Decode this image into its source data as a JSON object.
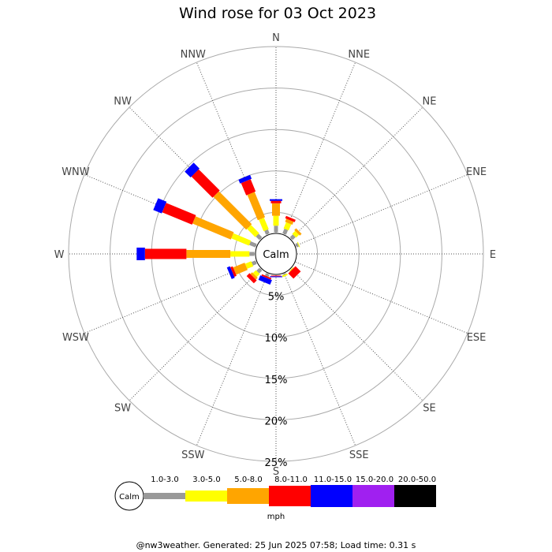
{
  "title": "Wind rose for 03 Oct 2023",
  "footer": "@nw3weather. Generated: 25 Jun 2025 07:58; Load time: 0.31 s",
  "calm_label": "Calm",
  "units_label": "mph",
  "chart_data": {
    "type": "wind-rose",
    "title": "Wind rose for 03 Oct 2023",
    "directions": [
      "N",
      "NNE",
      "NE",
      "ENE",
      "E",
      "ESE",
      "SE",
      "SSE",
      "S",
      "SSW",
      "SW",
      "WSW",
      "W",
      "WNW",
      "NW",
      "NNW"
    ],
    "rings": [
      {
        "value": 5,
        "label": "5%"
      },
      {
        "value": 10,
        "label": "10%"
      },
      {
        "value": 15,
        "label": "15%"
      },
      {
        "value": 20,
        "label": "20%"
      },
      {
        "value": 25,
        "label": "25%"
      }
    ],
    "rmax": 25,
    "calm_radius": 2.6,
    "speed_bins": [
      {
        "label": "1.0-3.0",
        "color": "#999999"
      },
      {
        "label": "3.0-5.0",
        "color": "#ffff00"
      },
      {
        "label": "5.0-8.0",
        "color": "#ffa500"
      },
      {
        "label": "8.0-11.0",
        "color": "#ff0000"
      },
      {
        "label": "11.0-15.0",
        "color": "#0000ff"
      },
      {
        "label": "15.0-20.0",
        "color": "#a020f0"
      },
      {
        "label": "20.0-50.0",
        "color": "#000000"
      }
    ],
    "frequencies": {
      "N": [
        0.8,
        1.2,
        1.5,
        0.3,
        0.2,
        0,
        0
      ],
      "NNE": [
        0.6,
        0.8,
        0.4,
        0.3,
        0,
        0,
        0
      ],
      "NE": [
        0.5,
        0.5,
        0.3,
        0,
        0,
        0,
        0
      ],
      "ENE": [
        0.3,
        0.1,
        0,
        0,
        0,
        0,
        0
      ],
      "E": [
        0,
        0,
        0,
        0,
        0,
        0,
        0
      ],
      "ESE": [
        0,
        0,
        0,
        0,
        0,
        0,
        0
      ],
      "SE": [
        0,
        0.1,
        0,
        0.9,
        0,
        0,
        0
      ],
      "SSE": [
        0.1,
        0.2,
        0,
        0,
        0,
        0,
        0
      ],
      "S": [
        0,
        0,
        0,
        0.1,
        0.1,
        0,
        0
      ],
      "SSW": [
        0.3,
        0,
        0,
        0.2,
        0.6,
        0,
        0
      ],
      "SW": [
        0.5,
        0.5,
        0.3,
        0.5,
        0,
        0,
        0
      ],
      "WSW": [
        0.5,
        0.8,
        1.5,
        0.3,
        0.4,
        0,
        0
      ],
      "W": [
        0.6,
        2.3,
        5.3,
        5.0,
        1.0,
        0,
        0
      ],
      "WNW": [
        0.8,
        2.3,
        5.0,
        3.9,
        1.1,
        0,
        0
      ],
      "NW": [
        0.6,
        1.4,
        5.6,
        3.6,
        1.0,
        0,
        0
      ],
      "NNW": [
        0.5,
        1.5,
        3.3,
        1.6,
        0.5,
        0,
        0
      ]
    }
  }
}
